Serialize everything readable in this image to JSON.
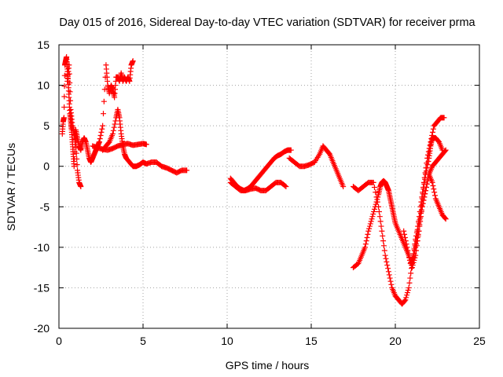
{
  "chart_data": {
    "type": "scatter",
    "title": "Day 015 of 2016, Sidereal Day-to-day VTEC variation (SDTVAR) for receiver prma",
    "xlabel": "GPS time / hours",
    "ylabel": "SDTVAR / TECUs",
    "xlim": [
      0,
      25
    ],
    "ylim": [
      -20,
      15
    ],
    "xticks": [
      0,
      5,
      10,
      15,
      20,
      25
    ],
    "yticks": [
      -20,
      -15,
      -10,
      -5,
      0,
      5,
      10,
      15
    ],
    "grid": true,
    "marker": "plus",
    "color": "#ff0000",
    "series": [
      {
        "x": [
          0.2,
          0.25,
          0.3,
          0.35,
          0.4,
          0.45,
          0.5,
          0.55,
          0.6,
          0.65,
          0.7,
          0.75,
          0.8,
          0.85,
          0.9,
          1.0,
          1.1,
          1.2,
          1.3,
          1.4,
          1.5,
          1.6,
          1.7,
          1.8,
          1.9,
          2.0,
          2.1,
          2.2,
          2.3,
          2.4
        ],
        "y": [
          4,
          5.5,
          6,
          12.5,
          13,
          13.5,
          12,
          10.5,
          8.5,
          6.5,
          5.5,
          4.5,
          3,
          1.5,
          0,
          4.5,
          3.5,
          2.5,
          2,
          3,
          3.5,
          3,
          2,
          1,
          0.5,
          1,
          1.5,
          2,
          2.5,
          3
        ]
      },
      {
        "x": [
          0.5,
          0.6,
          0.7,
          0.8,
          0.9,
          1.0,
          1.1,
          1.2,
          1.3
        ],
        "y": [
          10.5,
          12.5,
          7,
          5,
          4,
          3,
          -0.5,
          -2,
          -2.5
        ]
      },
      {
        "x": [
          2.4,
          2.6,
          2.8,
          2.9,
          3.0,
          3.1,
          3.2,
          3.3,
          3.4,
          3.5,
          3.6,
          3.7,
          3.8,
          3.9,
          4.0,
          4.1,
          4.2,
          4.3,
          4.4
        ],
        "y": [
          3,
          5,
          12.5,
          10,
          9,
          10,
          9.5,
          8.5,
          11,
          11,
          10.5,
          11.5,
          10.5,
          11,
          10.5,
          11,
          10.5,
          12.5,
          13
        ]
      },
      {
        "x": [
          2.6,
          2.8,
          3.0,
          3.2,
          3.4,
          3.5,
          3.6,
          3.7,
          3.8,
          3.9,
          4.0,
          4.2,
          4.4,
          4.6,
          4.8,
          5.0,
          5.2,
          5.5,
          5.8,
          6.1,
          6.4,
          6.7,
          7.0,
          7.3,
          7.6
        ],
        "y": [
          2,
          2.5,
          3,
          4,
          6,
          7,
          6,
          4,
          2.5,
          1.5,
          1,
          0.5,
          0,
          0,
          0.2,
          0.5,
          0.3,
          0.5,
          0.5,
          0,
          -0.2,
          -0.5,
          -0.8,
          -0.5,
          -0.5
        ]
      },
      {
        "x": [
          2.0,
          2.3,
          2.6,
          2.9,
          3.2,
          3.5,
          3.8,
          4.1,
          4.4,
          4.7,
          5.0,
          5.2
        ],
        "y": [
          2.5,
          2.3,
          2.1,
          2,
          2.2,
          2.5,
          2.7,
          2.8,
          2.6,
          2.7,
          2.8,
          2.7
        ]
      },
      {
        "x": [
          10.2,
          10.4,
          10.6,
          10.8,
          11.0,
          11.2,
          11.4,
          11.6,
          11.8,
          12.0,
          12.2,
          12.4,
          12.6,
          12.8,
          13.0,
          13.2,
          13.4,
          13.6,
          13.8
        ],
        "y": [
          -1.5,
          -2,
          -2.5,
          -2.8,
          -3,
          -2.8,
          -2.5,
          -2,
          -1.5,
          -1,
          -0.5,
          0,
          0.5,
          1,
          1.3,
          1.5,
          1.8,
          2,
          2
        ]
      },
      {
        "x": [
          10.2,
          10.5,
          10.8,
          11.1,
          11.4,
          11.7,
          12.0,
          12.3,
          12.6,
          12.9,
          13.2,
          13.5
        ],
        "y": [
          -2,
          -2.5,
          -3,
          -3,
          -2.8,
          -2.7,
          -3,
          -3,
          -2.5,
          -2,
          -2,
          -2.5
        ]
      },
      {
        "x": [
          13.7,
          14.0,
          14.3,
          14.6,
          14.9,
          15.2,
          15.5,
          15.7,
          15.9,
          16.1,
          16.3,
          16.5,
          16.7,
          16.9
        ],
        "y": [
          1,
          0.5,
          0,
          0,
          0.2,
          0.5,
          1.5,
          2.5,
          2,
          1.5,
          0.5,
          -0.5,
          -1.5,
          -2.5
        ]
      },
      {
        "x": [
          17.5,
          17.8,
          18.0,
          18.2,
          18.4,
          18.6,
          18.8,
          19.0,
          19.1,
          19.2,
          19.3,
          19.4,
          19.5,
          19.6,
          19.7,
          19.8,
          19.9,
          20.0,
          20.2,
          20.4,
          20.6,
          20.8,
          21.0,
          21.2,
          21.4,
          21.6,
          21.8,
          22.0,
          22.1,
          22.2,
          22.4,
          22.6,
          22.8
        ],
        "y": [
          -12.5,
          -12,
          -11,
          -10,
          -8,
          -6.5,
          -5,
          -3.5,
          -2.5,
          -2,
          -1.8,
          -2,
          -2.5,
          -3,
          -4,
          -5,
          -6,
          -7,
          -8,
          -9,
          -10,
          -11,
          -12.5,
          -11,
          -8,
          -4,
          -1,
          1,
          2.5,
          3.5,
          3.5,
          3,
          2
        ]
      },
      {
        "x": [
          17.5,
          17.8,
          18.1,
          18.4,
          18.7,
          19.0,
          19.2,
          19.4,
          19.6,
          19.8,
          20.0,
          20.2,
          20.4,
          20.6,
          20.8,
          21.0,
          21.2,
          21.4,
          21.6,
          21.8,
          22.0,
          22.2,
          22.4,
          22.6,
          22.8,
          23.0
        ],
        "y": [
          -2.5,
          -3,
          -2.5,
          -2,
          -2,
          -5,
          -8,
          -11,
          -13,
          -15,
          -16,
          -16.5,
          -17,
          -16.5,
          -15,
          -12,
          -9,
          -7,
          -5,
          -3,
          -1,
          0,
          0.5,
          1,
          1.5,
          2
        ]
      },
      {
        "x": [
          20.5,
          20.7,
          20.9,
          21.1,
          21.3,
          21.5,
          21.7,
          21.9,
          22.1,
          22.3,
          22.5,
          22.7,
          22.9
        ],
        "y": [
          -8,
          -10,
          -12,
          -11,
          -8,
          -5,
          -2,
          1,
          3,
          5,
          5.5,
          6,
          6
        ]
      },
      {
        "x": [
          21.0,
          21.2,
          21.4,
          21.6,
          21.8,
          22.0,
          22.2,
          22.4,
          22.6,
          22.8,
          23.0
        ],
        "y": [
          -12,
          -10,
          -8,
          -5,
          -3,
          -1,
          -2,
          -4,
          -5,
          -6,
          -6.5
        ]
      }
    ]
  }
}
